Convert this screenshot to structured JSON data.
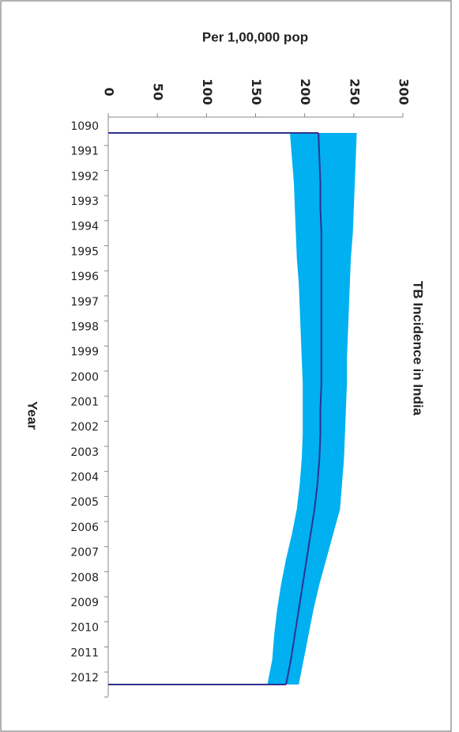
{
  "chart_data": {
    "type": "line_band",
    "title": "TB Incidence in India",
    "value_axis_label": "Per 1,00,000 pop",
    "category_axis_label": "Year",
    "categories": [
      "1090",
      "1991",
      "1992",
      "1993",
      "1994",
      "1995",
      "1996",
      "1997",
      "1998",
      "1999",
      "2000",
      "2001",
      "2002",
      "2003",
      "2004",
      "2005",
      "2006",
      "2007",
      "2008",
      "2009",
      "2010",
      "2011",
      "2012"
    ],
    "values": [
      214,
      215,
      216,
      216,
      217,
      217,
      217,
      217,
      217,
      217,
      217,
      216,
      216,
      215,
      213,
      210,
      206,
      202,
      198,
      194,
      190,
      186,
      181
    ],
    "lower": [
      185,
      187,
      189,
      190,
      191,
      192,
      194,
      195,
      196,
      197,
      198,
      198,
      198,
      197,
      195,
      192,
      187,
      181,
      176,
      172,
      169,
      167,
      162
    ],
    "upper": [
      253,
      252,
      251,
      250,
      249,
      247,
      246,
      245,
      244,
      243,
      243,
      242,
      241,
      240,
      238,
      236,
      229,
      222,
      215,
      209,
      204,
      199,
      194
    ],
    "line_color": "#2e3192",
    "band_color": "#00b0f0",
    "ylim": [
      0,
      300
    ],
    "yticks": [
      0,
      50,
      100,
      150,
      200,
      250,
      300
    ]
  }
}
